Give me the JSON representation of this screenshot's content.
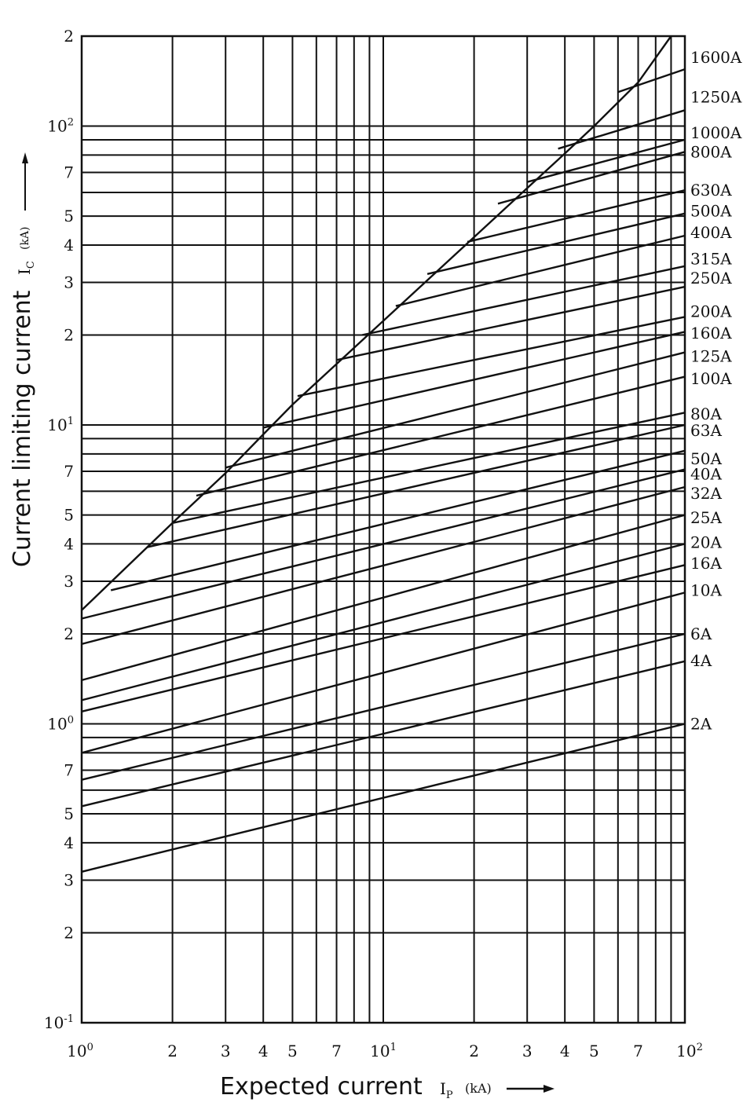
{
  "chart_data": {
    "type": "line",
    "xscale": "log",
    "yscale": "log",
    "xlim": [
      1,
      100
    ],
    "ylim": [
      0.1,
      200
    ],
    "grid": true,
    "x_title": "Expected current",
    "x_symbol": "I",
    "x_symbol_sub": "P",
    "x_unit": "(kA)",
    "y_title": "Current limiting current",
    "y_symbol": "I",
    "y_symbol_sub": "C",
    "y_unit": "(kA)",
    "x_ticks": [
      {
        "value": 1,
        "base": "10",
        "exp": "0"
      },
      {
        "value": 2,
        "label": "2"
      },
      {
        "value": 3,
        "label": "3"
      },
      {
        "value": 4,
        "label": "4"
      },
      {
        "value": 5,
        "label": "5"
      },
      {
        "value": 7,
        "label": "7"
      },
      {
        "value": 10,
        "base": "10",
        "exp": "1"
      },
      {
        "value": 20,
        "label": "2"
      },
      {
        "value": 30,
        "label": "3"
      },
      {
        "value": 40,
        "label": "4"
      },
      {
        "value": 50,
        "label": "5"
      },
      {
        "value": 70,
        "label": "7"
      },
      {
        "value": 100,
        "base": "10",
        "exp": "2"
      }
    ],
    "y_ticks": [
      {
        "value": 0.1,
        "base": "10",
        "exp": "-1"
      },
      {
        "value": 0.2,
        "label": "2"
      },
      {
        "value": 0.3,
        "label": "3"
      },
      {
        "value": 0.4,
        "label": "4"
      },
      {
        "value": 0.5,
        "label": "5"
      },
      {
        "value": 0.7,
        "label": "7"
      },
      {
        "value": 1,
        "base": "10",
        "exp": "0"
      },
      {
        "value": 2,
        "label": "2"
      },
      {
        "value": 3,
        "label": "3"
      },
      {
        "value": 4,
        "label": "4"
      },
      {
        "value": 5,
        "label": "5"
      },
      {
        "value": 7,
        "label": "7"
      },
      {
        "value": 10,
        "base": "10",
        "exp": "1"
      },
      {
        "value": 20,
        "label": "2"
      },
      {
        "value": 30,
        "label": "3"
      },
      {
        "value": 40,
        "label": "4"
      },
      {
        "value": 50,
        "label": "5"
      },
      {
        "value": 70,
        "label": "7"
      },
      {
        "value": 100,
        "base": "10",
        "exp": "2"
      },
      {
        "value": 200,
        "label": "2"
      }
    ],
    "x_gridlines": [
      1,
      2,
      3,
      4,
      5,
      6,
      7,
      8,
      9,
      10,
      20,
      30,
      40,
      50,
      60,
      70,
      80,
      90,
      100
    ],
    "y_gridlines": [
      0.1,
      0.2,
      0.3,
      0.4,
      0.5,
      0.6,
      0.7,
      0.8,
      0.9,
      1,
      2,
      3,
      4,
      5,
      6,
      7,
      8,
      9,
      10,
      20,
      30,
      40,
      50,
      60,
      70,
      80,
      90,
      100,
      200
    ],
    "envelope": {
      "points": [
        [
          1,
          2.4
        ],
        [
          2,
          4.7
        ],
        [
          3,
          6.9
        ],
        [
          4,
          9.3
        ],
        [
          5,
          11.7
        ],
        [
          7,
          16.0
        ],
        [
          10,
          22.3
        ],
        [
          20,
          42.5
        ],
        [
          30,
          62
        ],
        [
          40,
          81
        ],
        [
          50,
          100
        ],
        [
          70,
          140
        ],
        [
          90,
          200
        ]
      ]
    },
    "series": [
      {
        "name": "1600A",
        "x": [
          60,
          100
        ],
        "y": [
          130,
          155
        ]
      },
      {
        "name": "1250A",
        "x": [
          38,
          100
        ],
        "y": [
          84,
          113
        ]
      },
      {
        "name": "1000A",
        "x": [
          30,
          100
        ],
        "y": [
          65,
          90
        ]
      },
      {
        "name": "800A",
        "x": [
          24,
          100
        ],
        "y": [
          55,
          82
        ]
      },
      {
        "name": "630A",
        "x": [
          19,
          100
        ],
        "y": [
          41,
          61
        ]
      },
      {
        "name": "500A",
        "x": [
          14,
          100
        ],
        "y": [
          32,
          51
        ]
      },
      {
        "name": "400A",
        "x": [
          11,
          100
        ],
        "y": [
          25,
          43
        ]
      },
      {
        "name": "315A",
        "x": [
          8.5,
          100
        ],
        "y": [
          20,
          34
        ]
      },
      {
        "name": "250A",
        "x": [
          7,
          100
        ],
        "y": [
          16.5,
          29
        ]
      },
      {
        "name": "200A",
        "x": [
          5.2,
          100
        ],
        "y": [
          12.5,
          23
        ]
      },
      {
        "name": "160A",
        "x": [
          4,
          100
        ],
        "y": [
          9.8,
          20.5
        ]
      },
      {
        "name": "125A",
        "x": [
          3,
          100
        ],
        "y": [
          7.2,
          17.5
        ]
      },
      {
        "name": "100A",
        "x": [
          2.4,
          100
        ],
        "y": [
          5.8,
          14.5
        ]
      },
      {
        "name": "80A",
        "x": [
          2,
          100
        ],
        "y": [
          4.7,
          11
        ]
      },
      {
        "name": "63A",
        "x": [
          1.65,
          100
        ],
        "y": [
          3.9,
          10
        ]
      },
      {
        "name": "50A",
        "x": [
          1.25,
          100
        ],
        "y": [
          2.8,
          8.2
        ]
      },
      {
        "name": "40A",
        "x": [
          1,
          100
        ],
        "y": [
          2.25,
          7.1
        ]
      },
      {
        "name": "32A",
        "x": [
          1,
          100
        ],
        "y": [
          1.85,
          6.2
        ]
      },
      {
        "name": "25A",
        "x": [
          1,
          100
        ],
        "y": [
          1.4,
          5.0
        ]
      },
      {
        "name": "20A",
        "x": [
          1,
          100
        ],
        "y": [
          1.2,
          4.0
        ]
      },
      {
        "name": "16A",
        "x": [
          1,
          100
        ],
        "y": [
          1.1,
          3.4
        ]
      },
      {
        "name": "10A",
        "x": [
          1,
          100
        ],
        "y": [
          0.8,
          2.75
        ]
      },
      {
        "name": "6A",
        "x": [
          1,
          100
        ],
        "y": [
          0.65,
          2.0
        ]
      },
      {
        "name": "4A",
        "x": [
          1,
          100
        ],
        "y": [
          0.53,
          1.62
        ]
      },
      {
        "name": "2A",
        "x": [
          1,
          100
        ],
        "y": [
          0.32,
          1.0
        ]
      }
    ],
    "rating_label_positions": {
      "1600A": 170,
      "1250A": 125,
      "1000A": 95,
      "800A": 82,
      "630A": 61,
      "500A": 52,
      "400A": 44,
      "315A": 36,
      "250A": 31,
      "200A": 24,
      "160A": 20.3,
      "125A": 17,
      "100A": 14.3,
      "80A": 10.9,
      "63A": 9.6,
      "50A": 7.7,
      "40A": 6.85,
      "32A": 5.9,
      "25A": 4.9,
      "20A": 4.05,
      "16A": 3.45,
      "10A": 2.8,
      "6A": 2.0,
      "4A": 1.63,
      "2A": 1.0
    }
  }
}
